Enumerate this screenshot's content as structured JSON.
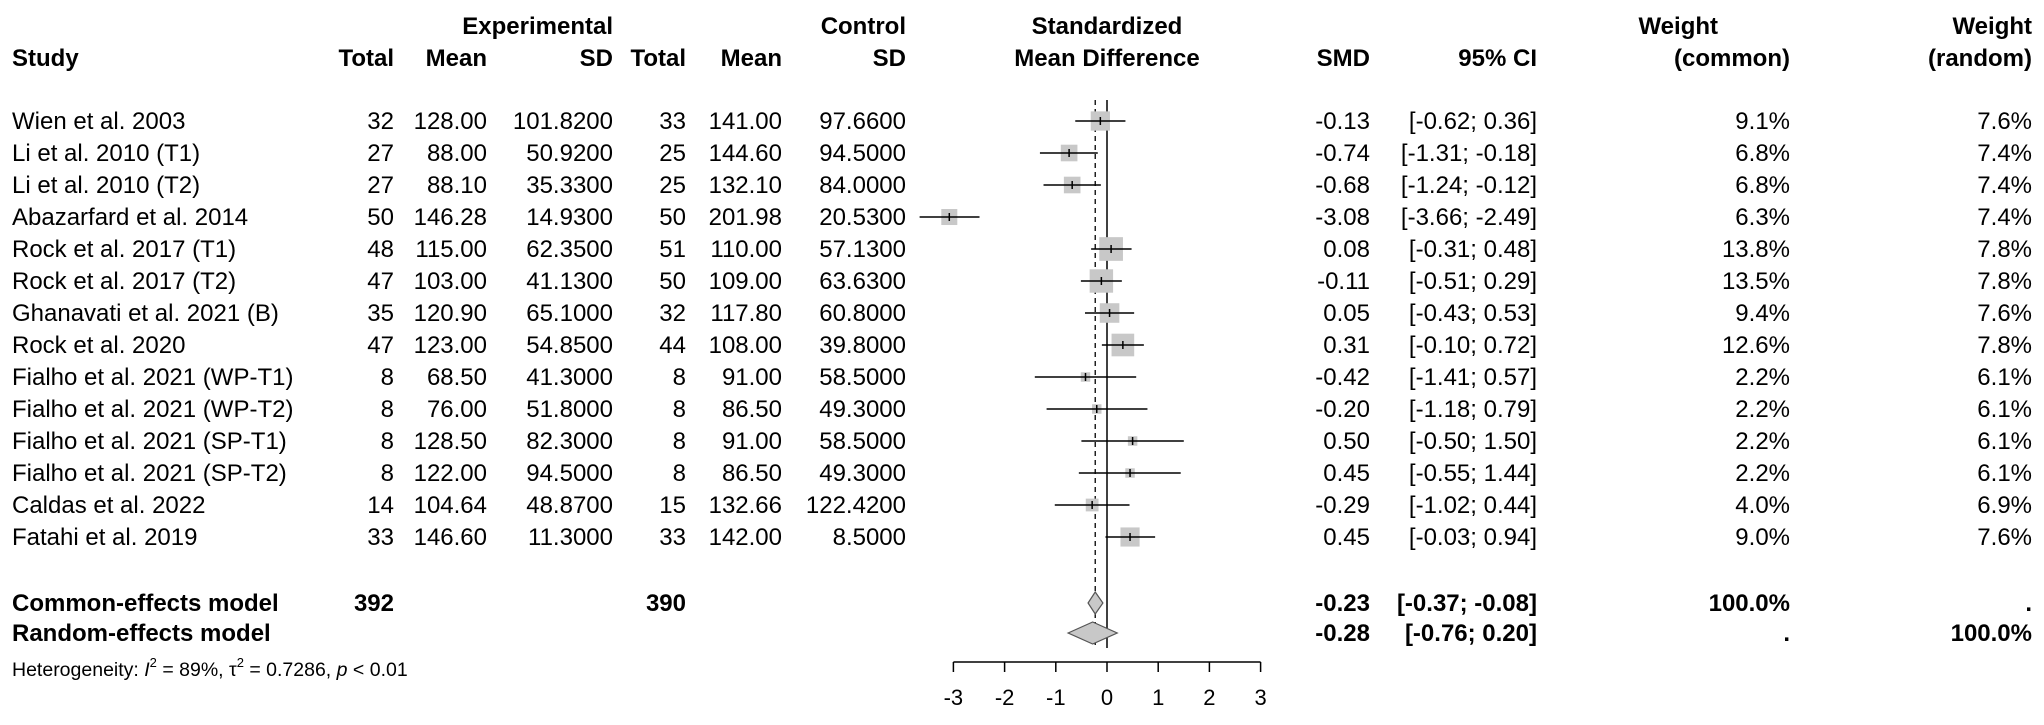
{
  "header": {
    "experimental": "Experimental",
    "control": "Control",
    "smd_title_1": "Standardized",
    "smd_title_2": "Mean Difference",
    "study": "Study",
    "total": "Total",
    "mean": "Mean",
    "sd": "SD",
    "smd": "SMD",
    "ci": "95% CI",
    "weight": "Weight",
    "common": "(common)",
    "random": "(random)"
  },
  "chart_data": {
    "type": "forest",
    "measure": "Standardized Mean Difference",
    "xlim": [
      -3,
      3
    ],
    "ticks": [
      "-3",
      "-2",
      "-1",
      "0",
      "1",
      "2",
      "3"
    ],
    "studies": [
      {
        "study": "Wien et al. 2003",
        "e_total": "32",
        "e_mean": "128.00",
        "e_sd": "101.8200",
        "c_total": "33",
        "c_mean": "141.00",
        "c_sd": "97.6600",
        "smd_text": "-0.13",
        "ci_text": "[-0.62;  0.36]",
        "w_common": "9.1%",
        "w_random": "7.6%",
        "smd": -0.13,
        "lo": -0.62,
        "hi": 0.36,
        "wc": 9.1
      },
      {
        "study": "Li et al. 2010 (T1)",
        "e_total": "27",
        "e_mean": "88.00",
        "e_sd": "50.9200",
        "c_total": "25",
        "c_mean": "144.60",
        "c_sd": "94.5000",
        "smd_text": "-0.74",
        "ci_text": "[-1.31; -0.18]",
        "w_common": "6.8%",
        "w_random": "7.4%",
        "smd": -0.74,
        "lo": -1.31,
        "hi": -0.18,
        "wc": 6.8
      },
      {
        "study": "Li et al. 2010 (T2)",
        "e_total": "27",
        "e_mean": "88.10",
        "e_sd": "35.3300",
        "c_total": "25",
        "c_mean": "132.10",
        "c_sd": "84.0000",
        "smd_text": "-0.68",
        "ci_text": "[-1.24; -0.12]",
        "w_common": "6.8%",
        "w_random": "7.4%",
        "smd": -0.68,
        "lo": -1.24,
        "hi": -0.12,
        "wc": 6.8
      },
      {
        "study": "Abazarfard et al. 2014",
        "e_total": "50",
        "e_mean": "146.28",
        "e_sd": "14.9300",
        "c_total": "50",
        "c_mean": "201.98",
        "c_sd": "20.5300",
        "smd_text": "-3.08",
        "ci_text": "[-3.66; -2.49]",
        "w_common": "6.3%",
        "w_random": "7.4%",
        "smd": -3.08,
        "lo": -3.66,
        "hi": -2.49,
        "wc": 6.3
      },
      {
        "study": "Rock et al. 2017 (T1)",
        "e_total": "48",
        "e_mean": "115.00",
        "e_sd": "62.3500",
        "c_total": "51",
        "c_mean": "110.00",
        "c_sd": "57.1300",
        "smd_text": "0.08",
        "ci_text": "[-0.31;  0.48]",
        "w_common": "13.8%",
        "w_random": "7.8%",
        "smd": 0.08,
        "lo": -0.31,
        "hi": 0.48,
        "wc": 13.8
      },
      {
        "study": "Rock et al. 2017 (T2)",
        "e_total": "47",
        "e_mean": "103.00",
        "e_sd": "41.1300",
        "c_total": "50",
        "c_mean": "109.00",
        "c_sd": "63.6300",
        "smd_text": "-0.11",
        "ci_text": "[-0.51;  0.29]",
        "w_common": "13.5%",
        "w_random": "7.8%",
        "smd": -0.11,
        "lo": -0.51,
        "hi": 0.29,
        "wc": 13.5
      },
      {
        "study": "Ghanavati et al. 2021 (B)",
        "e_total": "35",
        "e_mean": "120.90",
        "e_sd": "65.1000",
        "c_total": "32",
        "c_mean": "117.80",
        "c_sd": "60.8000",
        "smd_text": "0.05",
        "ci_text": "[-0.43;  0.53]",
        "w_common": "9.4%",
        "w_random": "7.6%",
        "smd": 0.05,
        "lo": -0.43,
        "hi": 0.53,
        "wc": 9.4
      },
      {
        "study": "Rock et al. 2020",
        "e_total": "47",
        "e_mean": "123.00",
        "e_sd": "54.8500",
        "c_total": "44",
        "c_mean": "108.00",
        "c_sd": "39.8000",
        "smd_text": "0.31",
        "ci_text": "[-0.10;  0.72]",
        "w_common": "12.6%",
        "w_random": "7.8%",
        "smd": 0.31,
        "lo": -0.1,
        "hi": 0.72,
        "wc": 12.6
      },
      {
        "study": "Fialho et al. 2021 (WP-T1)",
        "e_total": "8",
        "e_mean": "68.50",
        "e_sd": "41.3000",
        "c_total": "8",
        "c_mean": "91.00",
        "c_sd": "58.5000",
        "smd_text": "-0.42",
        "ci_text": "[-1.41;  0.57]",
        "w_common": "2.2%",
        "w_random": "6.1%",
        "smd": -0.42,
        "lo": -1.41,
        "hi": 0.57,
        "wc": 2.2
      },
      {
        "study": "Fialho et al. 2021 (WP-T2)",
        "e_total": "8",
        "e_mean": "76.00",
        "e_sd": "51.8000",
        "c_total": "8",
        "c_mean": "86.50",
        "c_sd": "49.3000",
        "smd_text": "-0.20",
        "ci_text": "[-1.18;  0.79]",
        "w_common": "2.2%",
        "w_random": "6.1%",
        "smd": -0.2,
        "lo": -1.18,
        "hi": 0.79,
        "wc": 2.2
      },
      {
        "study": "Fialho et al. 2021 (SP-T1)",
        "e_total": "8",
        "e_mean": "128.50",
        "e_sd": "82.3000",
        "c_total": "8",
        "c_mean": "91.00",
        "c_sd": "58.5000",
        "smd_text": "0.50",
        "ci_text": "[-0.50;  1.50]",
        "w_common": "2.2%",
        "w_random": "6.1%",
        "smd": 0.5,
        "lo": -0.5,
        "hi": 1.5,
        "wc": 2.2
      },
      {
        "study": "Fialho et al. 2021 (SP-T2)",
        "e_total": "8",
        "e_mean": "122.00",
        "e_sd": "94.5000",
        "c_total": "8",
        "c_mean": "86.50",
        "c_sd": "49.3000",
        "smd_text": "0.45",
        "ci_text": "[-0.55;  1.44]",
        "w_common": "2.2%",
        "w_random": "6.1%",
        "smd": 0.45,
        "lo": -0.55,
        "hi": 1.44,
        "wc": 2.2
      },
      {
        "study": "Caldas et al. 2022",
        "e_total": "14",
        "e_mean": "104.64",
        "e_sd": "48.8700",
        "c_total": "15",
        "c_mean": "132.66",
        "c_sd": "122.4200",
        "smd_text": "-0.29",
        "ci_text": "[-1.02;  0.44]",
        "w_common": "4.0%",
        "w_random": "6.9%",
        "smd": -0.29,
        "lo": -1.02,
        "hi": 0.44,
        "wc": 4.0
      },
      {
        "study": "Fatahi et al. 2019",
        "e_total": "33",
        "e_mean": "146.60",
        "e_sd": "11.3000",
        "c_total": "33",
        "c_mean": "142.00",
        "c_sd": "8.5000",
        "smd_text": "0.45",
        "ci_text": "[-0.03;  0.94]",
        "w_common": "9.0%",
        "w_random": "7.6%",
        "smd": 0.45,
        "lo": -0.03,
        "hi": 0.94,
        "wc": 9.0
      }
    ],
    "summary": [
      {
        "label": "Common-effects model",
        "e_total": "392",
        "c_total": "390",
        "smd_text": "-0.23",
        "ci_text": "[-0.37; -0.08]",
        "w_common": "100.0%",
        "w_random": ".",
        "smd": -0.23,
        "lo": -0.37,
        "hi": -0.08
      },
      {
        "label": "Random-effects model",
        "e_total": "",
        "c_total": "",
        "smd_text": "-0.28",
        "ci_text": "[-0.76;  0.20]",
        "w_common": ".",
        "w_random": "100.0%",
        "smd": -0.28,
        "lo": -0.76,
        "hi": 0.2
      }
    ],
    "heterogeneity": {
      "prefix": "Heterogeneity: ",
      "i2_label": "I",
      "i2_sup": "2",
      "i2_value": " = 89%, ",
      "tau2_label": "τ",
      "tau2_sup": "2",
      "tau2_value": " = 0.7286, ",
      "p_label": "p",
      "p_value": " < 0.01"
    }
  }
}
